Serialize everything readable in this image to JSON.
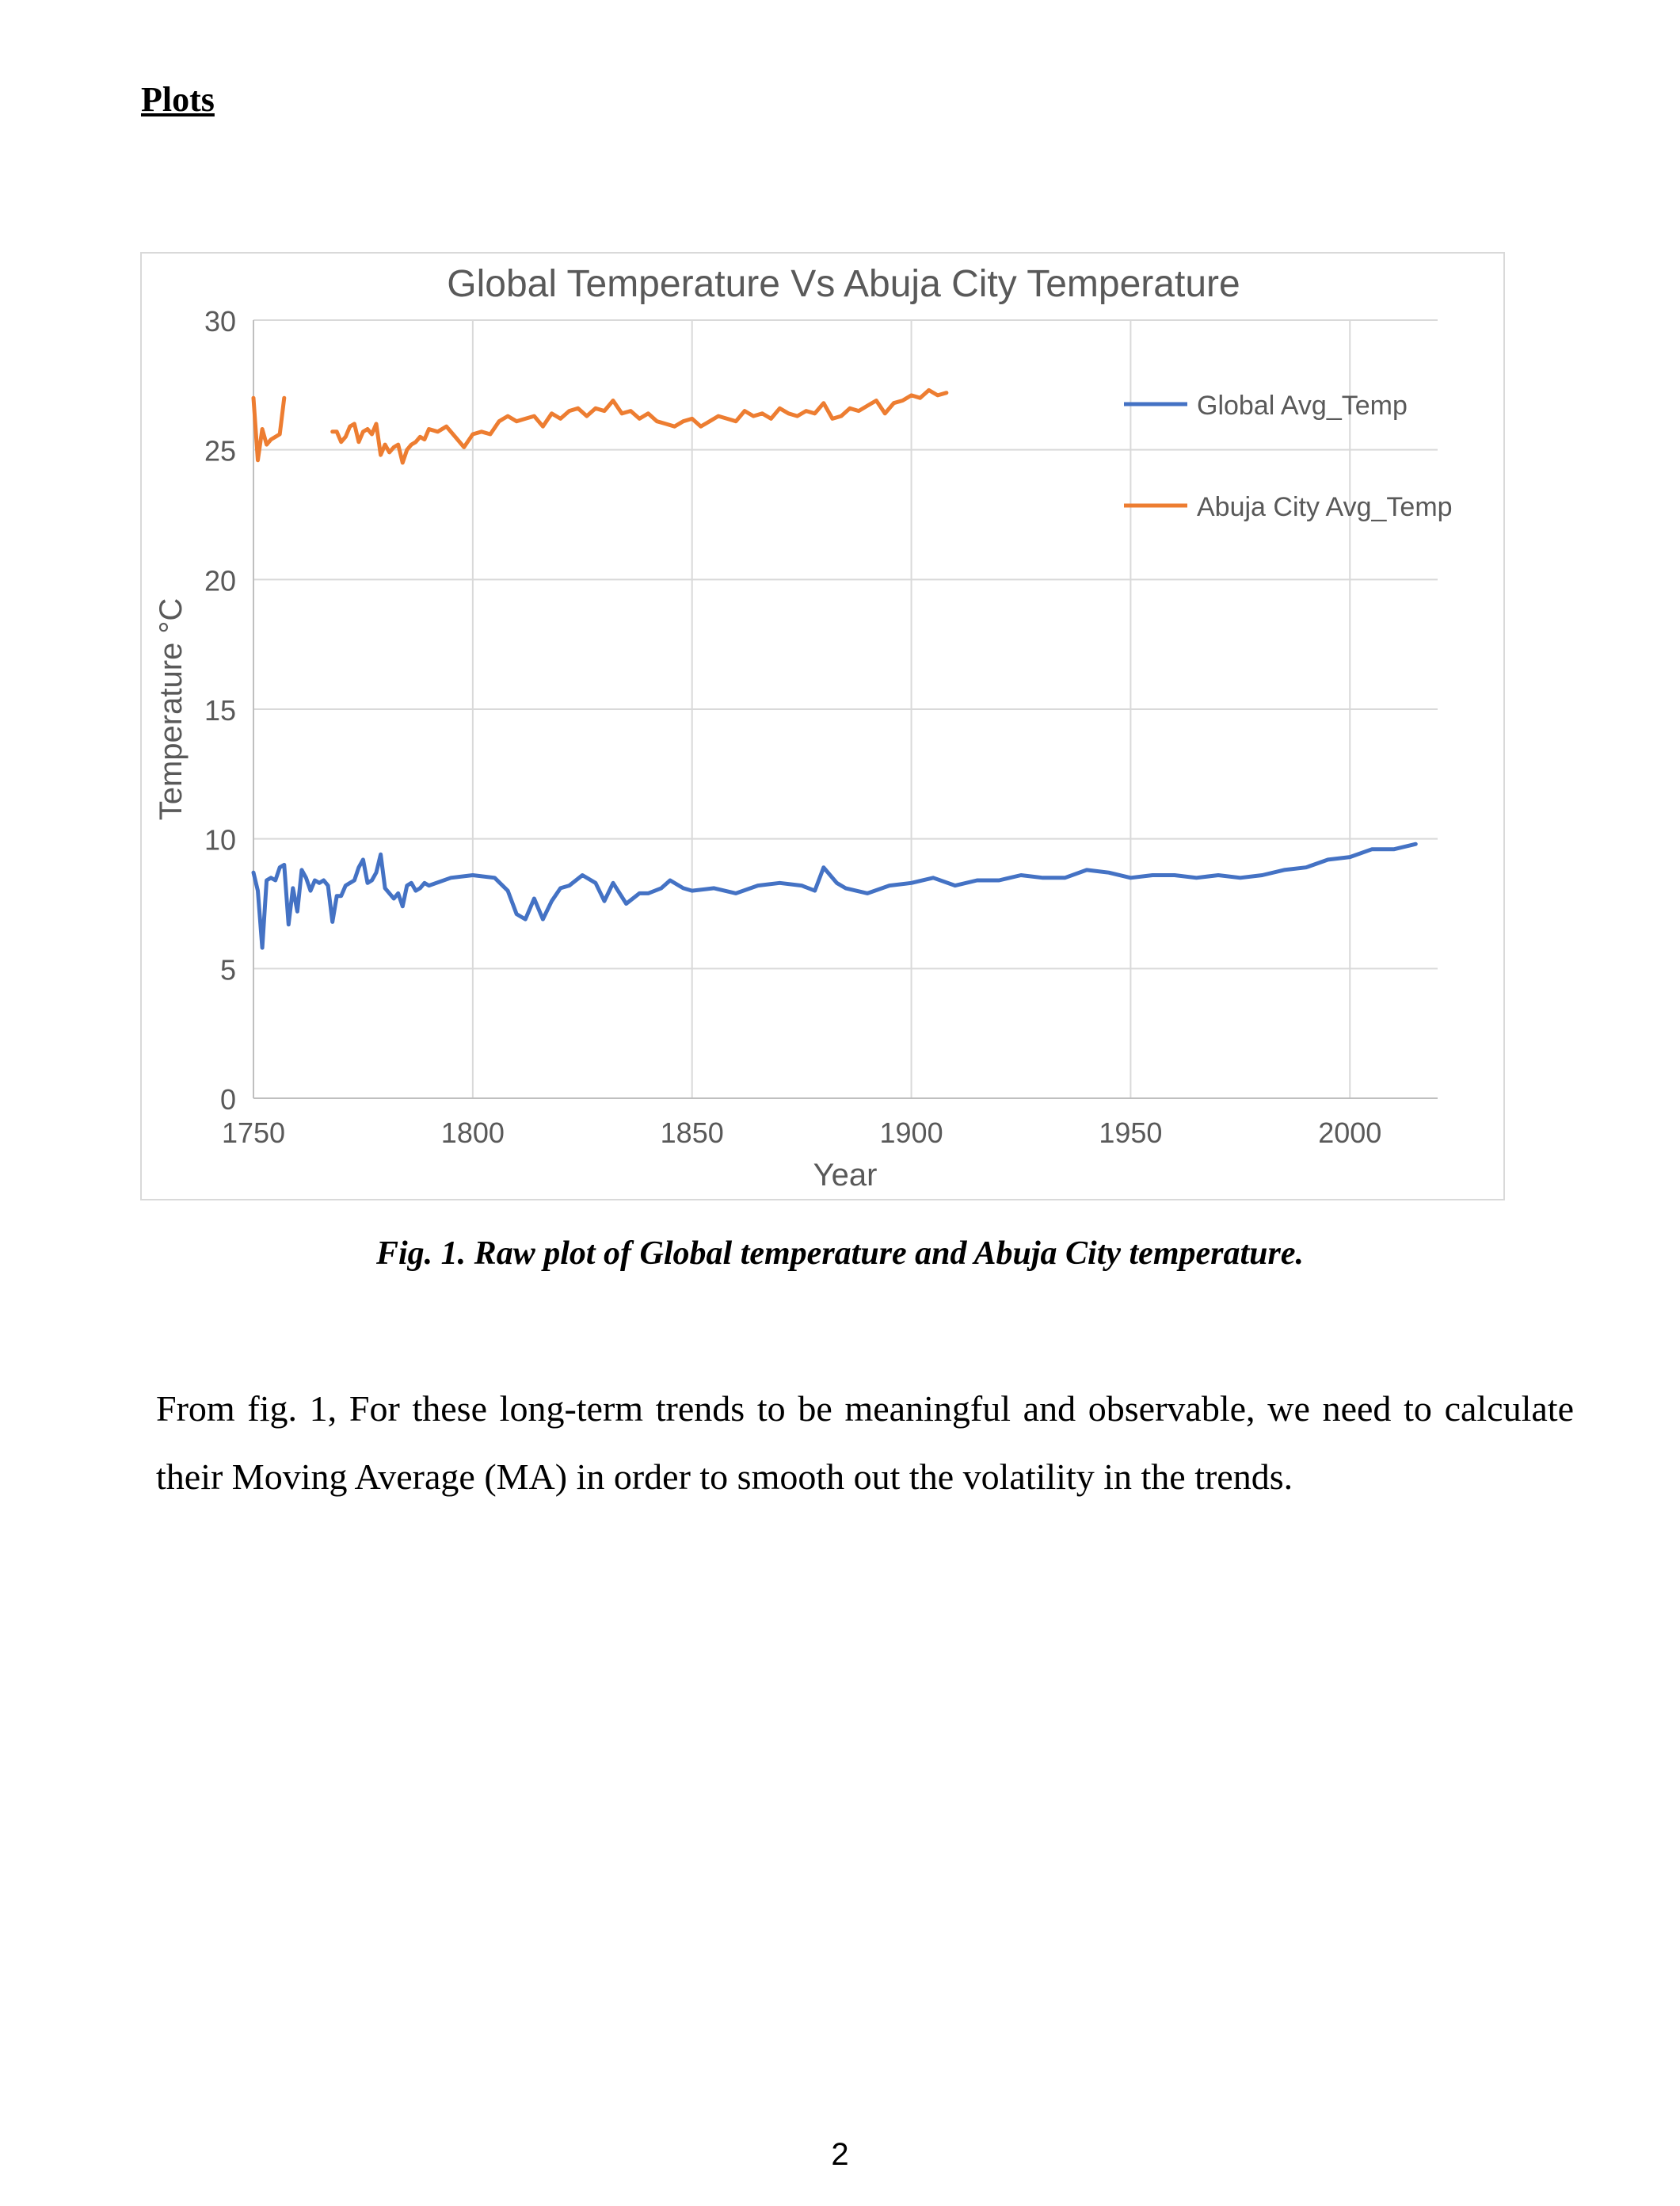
{
  "page": {
    "heading": "Plots",
    "caption": "Fig. 1. Raw plot of Global temperature and Abuja City temperature.",
    "paragraph": "From fig. 1, For these long-term trends to be meaningful and observable, we need to calculate their Moving Average (MA) in order to smooth out the volatility in the trends.",
    "page_number": "2"
  },
  "chart_data": {
    "type": "line",
    "title": "Global Temperature Vs Abuja City Temperature",
    "xlabel": "Year",
    "ylabel": "Temperature °C",
    "xlim": [
      1750,
      2020
    ],
    "ylim": [
      0,
      30
    ],
    "xticks": [
      1750,
      1800,
      1850,
      1900,
      1950,
      2000
    ],
    "yticks": [
      0,
      5,
      10,
      15,
      20,
      25,
      30
    ],
    "grid": true,
    "legend_position": "top-right",
    "series": [
      {
        "name": "Global Avg_Temp",
        "color": "#4472C4",
        "x": [
          1750,
          1751,
          1752,
          1753,
          1754,
          1755,
          1756,
          1757,
          1758,
          1759,
          1760,
          1761,
          1762,
          1763,
          1764,
          1765,
          1766,
          1767,
          1768,
          1769,
          1770,
          1771,
          1772,
          1773,
          1774,
          1775,
          1776,
          1777,
          1778,
          1779,
          1780,
          1781,
          1782,
          1783,
          1784,
          1785,
          1786,
          1787,
          1788,
          1789,
          1790,
          1795,
          1800,
          1805,
          1808,
          1810,
          1812,
          1814,
          1816,
          1818,
          1820,
          1822,
          1825,
          1828,
          1830,
          1832,
          1835,
          1838,
          1840,
          1843,
          1845,
          1848,
          1850,
          1855,
          1860,
          1865,
          1870,
          1875,
          1878,
          1880,
          1883,
          1885,
          1890,
          1895,
          1900,
          1905,
          1910,
          1915,
          1920,
          1925,
          1930,
          1935,
          1940,
          1945,
          1950,
          1955,
          1960,
          1965,
          1970,
          1975,
          1980,
          1985,
          1990,
          1995,
          2000,
          2005,
          2010,
          2015
        ],
        "y": [
          8.7,
          8.0,
          5.8,
          8.4,
          8.5,
          8.4,
          8.9,
          9.0,
          6.7,
          8.1,
          7.2,
          8.8,
          8.5,
          8.0,
          8.4,
          8.3,
          8.4,
          8.2,
          6.8,
          7.8,
          7.8,
          8.2,
          8.3,
          8.4,
          8.9,
          9.2,
          8.3,
          8.4,
          8.7,
          9.4,
          8.1,
          7.9,
          7.7,
          7.9,
          7.4,
          8.2,
          8.3,
          8.0,
          8.1,
          8.3,
          8.2,
          8.5,
          8.6,
          8.5,
          8.0,
          7.1,
          6.9,
          7.7,
          6.9,
          7.6,
          8.1,
          8.2,
          8.6,
          8.3,
          7.6,
          8.3,
          7.5,
          7.9,
          7.9,
          8.1,
          8.4,
          8.1,
          8.0,
          8.1,
          7.9,
          8.2,
          8.3,
          8.2,
          8.0,
          8.9,
          8.3,
          8.1,
          7.9,
          8.2,
          8.3,
          8.5,
          8.2,
          8.4,
          8.4,
          8.6,
          8.5,
          8.5,
          8.8,
          8.7,
          8.5,
          8.6,
          8.6,
          8.5,
          8.6,
          8.5,
          8.6,
          8.8,
          8.9,
          9.2,
          9.3,
          9.6,
          9.6,
          9.8
        ]
      },
      {
        "name": "Abuja City Avg_Temp",
        "color": "#ED7D31",
        "x": [
          1750,
          1751,
          1752,
          1753,
          1754,
          1755,
          1756,
          1757,
          1768,
          1769,
          1770,
          1771,
          1772,
          1773,
          1774,
          1775,
          1776,
          1777,
          1778,
          1779,
          1780,
          1781,
          1782,
          1783,
          1784,
          1785,
          1786,
          1787,
          1788,
          1789,
          1790,
          1792,
          1794,
          1796,
          1798,
          1800,
          1802,
          1804,
          1806,
          1808,
          1810,
          1812,
          1814,
          1816,
          1818,
          1820,
          1822,
          1824,
          1826,
          1828,
          1830,
          1832,
          1834,
          1836,
          1838,
          1840,
          1842,
          1844,
          1846,
          1848,
          1850,
          1852,
          1854,
          1856,
          1858,
          1860,
          1862,
          1864,
          1866,
          1868,
          1870,
          1872,
          1874,
          1876,
          1878,
          1880,
          1882,
          1884,
          1886,
          1888,
          1890,
          1892,
          1894,
          1896,
          1898,
          1900,
          1902,
          1904,
          1906,
          1908
        ],
        "y": [
          27.0,
          24.6,
          25.8,
          25.2,
          25.4,
          25.5,
          25.6,
          27.0,
          25.7,
          25.7,
          25.3,
          25.5,
          25.9,
          26.0,
          25.3,
          25.7,
          25.8,
          25.6,
          26.0,
          24.8,
          25.2,
          24.9,
          25.1,
          25.2,
          24.5,
          25.0,
          25.2,
          25.3,
          25.5,
          25.4,
          25.8,
          25.7,
          25.9,
          25.5,
          25.1,
          25.6,
          25.7,
          25.6,
          26.1,
          26.3,
          26.1,
          26.2,
          26.3,
          25.9,
          26.4,
          26.2,
          26.5,
          26.6,
          26.3,
          26.6,
          26.5,
          26.9,
          26.4,
          26.5,
          26.2,
          26.4,
          26.1,
          26.0,
          25.9,
          26.1,
          26.2,
          25.9,
          26.1,
          26.3,
          26.2,
          26.1,
          26.5,
          26.3,
          26.4,
          26.2,
          26.6,
          26.4,
          26.3,
          26.5,
          26.4,
          26.8,
          26.2,
          26.3,
          26.6,
          26.5,
          26.7,
          26.9,
          26.4,
          26.8,
          26.9,
          27.1,
          27.0,
          27.3,
          27.1,
          27.2
        ]
      }
    ]
  }
}
